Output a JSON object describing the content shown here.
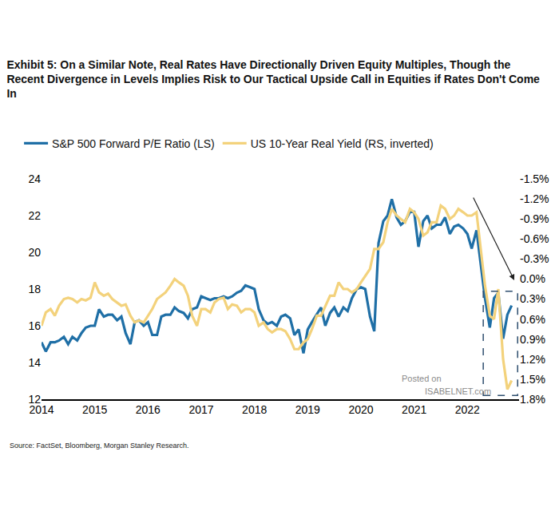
{
  "chart_data": {
    "type": "line",
    "title": [
      "Exhibit 5: On a Similar Note, Real Rates Have Directionally Driven Equity Multiples, Though the",
      "Recent Divergence in Levels Implies Risk to Our Tactical Upside Call in Equities if Rates Don't Come",
      "In"
    ],
    "source": "Source: FactSet, Bloomberg, Morgan Stanley Research.",
    "annotations": [
      "Posted on",
      "ISABELNET.com"
    ],
    "x": [
      2014,
      2014.08,
      2014.17,
      2014.25,
      2014.33,
      2014.42,
      2014.5,
      2014.58,
      2014.67,
      2014.75,
      2014.83,
      2014.92,
      2015,
      2015.08,
      2015.17,
      2015.25,
      2015.33,
      2015.42,
      2015.5,
      2015.58,
      2015.67,
      2015.75,
      2015.83,
      2015.92,
      2016,
      2016.08,
      2016.17,
      2016.25,
      2016.33,
      2016.42,
      2016.5,
      2016.58,
      2016.67,
      2016.75,
      2016.83,
      2016.92,
      2017,
      2017.08,
      2017.17,
      2017.25,
      2017.33,
      2017.42,
      2017.5,
      2017.58,
      2017.67,
      2017.75,
      2017.83,
      2017.92,
      2018,
      2018.08,
      2018.17,
      2018.25,
      2018.33,
      2018.42,
      2018.5,
      2018.58,
      2018.67,
      2018.75,
      2018.83,
      2018.92,
      2019,
      2019.08,
      2019.17,
      2019.25,
      2019.33,
      2019.42,
      2019.5,
      2019.58,
      2019.67,
      2019.75,
      2019.83,
      2019.92,
      2020,
      2020.08,
      2020.17,
      2020.25,
      2020.33,
      2020.42,
      2020.5,
      2020.58,
      2020.67,
      2020.75,
      2020.83,
      2020.92,
      2021,
      2021.08,
      2021.17,
      2021.25,
      2021.33,
      2021.42,
      2021.5,
      2021.58,
      2021.67,
      2021.75,
      2021.83,
      2021.92,
      2022,
      2022.08,
      2022.17,
      2022.25,
      2022.33,
      2022.42,
      2022.5,
      2022.58,
      2022.67,
      2022.75,
      2022.83
    ],
    "series": [
      {
        "name": "S&P 500 Forward P/E Ratio (LS)",
        "color": "#1f6fa6",
        "values": [
          15.1,
          14.6,
          15.1,
          15.1,
          15.2,
          15.4,
          15.0,
          15.4,
          15.2,
          15.6,
          15.9,
          16.0,
          16.0,
          16.9,
          16.5,
          16.6,
          16.6,
          16.3,
          16.5,
          15.6,
          15.0,
          16.2,
          16.3,
          16.0,
          16.2,
          15.5,
          15.5,
          16.5,
          16.6,
          16.6,
          17.0,
          16.8,
          16.7,
          16.4,
          16.9,
          17.0,
          17.6,
          17.5,
          17.4,
          17.5,
          17.5,
          17.6,
          17.5,
          17.6,
          17.8,
          17.9,
          18.2,
          18.1,
          18.0,
          16.9,
          16.3,
          16.1,
          16.2,
          16.0,
          16.5,
          16.6,
          16.4,
          15.5,
          15.8,
          14.5,
          15.8,
          16.2,
          16.6,
          17.0,
          16.0,
          16.7,
          17.0,
          16.5,
          17.0,
          16.8,
          17.5,
          18.0,
          18.1,
          18.0,
          16.5,
          15.7,
          20.5,
          21.7,
          22.0,
          22.9,
          21.9,
          21.5,
          21.7,
          22.2,
          22.2,
          20.3,
          21.7,
          22.0,
          21.3,
          21.5,
          21.5,
          21.9,
          21.0,
          21.4,
          21.5,
          21.3,
          21.0,
          20.2,
          21.2,
          19.3,
          17.5,
          15.9,
          17.5,
          17.8,
          15.3,
          16.6,
          17.1
        ]
      },
      {
        "name": "US 10-Year Real Yield (RS, inverted)",
        "color": "#f3d27c",
        "axis": "y2",
        "values": [
          0.7,
          0.5,
          0.45,
          0.55,
          0.4,
          0.3,
          0.28,
          0.3,
          0.35,
          0.3,
          0.32,
          0.28,
          0.05,
          0.2,
          0.25,
          0.22,
          0.3,
          0.35,
          0.4,
          0.38,
          0.55,
          0.65,
          0.62,
          0.65,
          0.55,
          0.45,
          0.3,
          0.25,
          0.2,
          0.1,
          0,
          0.05,
          0.1,
          0.25,
          0.55,
          0.7,
          0.45,
          0.45,
          0.5,
          0.35,
          0.3,
          0.28,
          0.45,
          0.38,
          0.4,
          0.5,
          0.45,
          0.45,
          0.5,
          0.7,
          0.65,
          0.75,
          0.8,
          0.75,
          0.75,
          0.78,
          0.9,
          1.05,
          1.05,
          0.95,
          0.9,
          0.75,
          0.55,
          0.55,
          0.4,
          0.25,
          0.25,
          0.05,
          0.15,
          0.15,
          0.2,
          0.15,
          0.05,
          -0.05,
          -0.15,
          -0.45,
          -0.45,
          -0.55,
          -0.85,
          -1.05,
          -0.95,
          -0.9,
          -0.85,
          -1.05,
          -1.0,
          -0.9,
          -0.65,
          -0.7,
          -0.85,
          -0.85,
          -1.1,
          -1.05,
          -0.9,
          -0.95,
          -1.05,
          -1.0,
          -0.95,
          -0.95,
          -1.0,
          -0.45,
          0.1,
          0.55,
          0.6,
          0.15,
          1.2,
          1.65,
          1.52
        ]
      }
    ],
    "xlim": [
      2014,
      2022.97
    ],
    "xticks": [
      2014,
      2015,
      2016,
      2017,
      2018,
      2019,
      2020,
      2021,
      2022
    ],
    "ylim": [
      12,
      24
    ],
    "yticks": [
      12,
      14,
      16,
      18,
      20,
      22,
      24
    ],
    "y2lim": [
      1.8,
      -1.5
    ],
    "y2ticks": [
      {
        "value": -1.5,
        "label": "-1.5%"
      },
      {
        "value": -1.2,
        "label": "-1.2%"
      },
      {
        "value": -0.9,
        "label": "-0.9%"
      },
      {
        "value": -0.6,
        "label": "-0.6%"
      },
      {
        "value": -0.3,
        "label": "-0.3%"
      },
      {
        "value": 0,
        "label": "0.0%"
      },
      {
        "value": 0.3,
        "label": "0.3%"
      },
      {
        "value": 0.6,
        "label": "0.6%"
      },
      {
        "value": 0.9,
        "label": "0.9%"
      },
      {
        "value": 1.2,
        "label": "1.2%"
      },
      {
        "value": 1.5,
        "label": "1.5%"
      },
      {
        "value": 1.8,
        "label": "1.8%"
      }
    ],
    "grid": false,
    "legend": "top"
  }
}
